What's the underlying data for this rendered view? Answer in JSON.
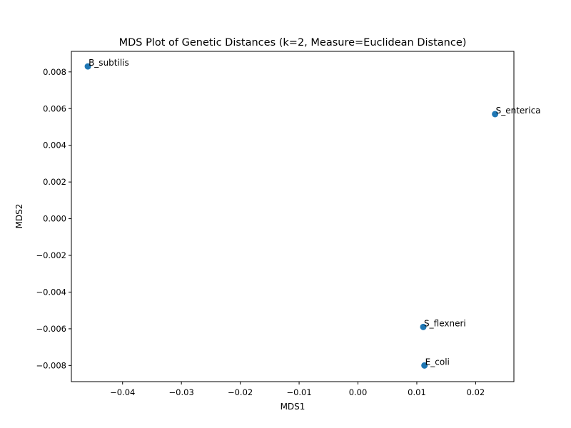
{
  "chart_data": {
    "type": "scatter",
    "title": "MDS Plot of Genetic Distances (k=2, Measure=Euclidean Distance)",
    "xlabel": "MDS1",
    "ylabel": "MDS2",
    "xlim": [
      -0.0487,
      0.0265
    ],
    "ylim": [
      -0.00888,
      0.00912
    ],
    "xticks": [
      -0.04,
      -0.03,
      -0.02,
      -0.01,
      0.0,
      0.01,
      0.02
    ],
    "xtick_labels": [
      "−0.04",
      "−0.03",
      "−0.02",
      "−0.01",
      "0.00",
      "0.01",
      "0.02"
    ],
    "yticks": [
      -0.008,
      -0.006,
      -0.004,
      -0.002,
      0.0,
      0.002,
      0.004,
      0.006,
      0.008
    ],
    "ytick_labels": [
      "−0.008",
      "−0.006",
      "−0.004",
      "−0.002",
      "0.000",
      "0.002",
      "0.004",
      "0.006",
      "0.008"
    ],
    "grid": false,
    "marker_color": "#1f77b4",
    "points": [
      {
        "label": "B_subtilis",
        "x": -0.0459,
        "y": 0.0083
      },
      {
        "label": "S_enterica",
        "x": 0.0233,
        "y": 0.0057
      },
      {
        "label": "S_flexneri",
        "x": 0.0111,
        "y": -0.0059
      },
      {
        "label": "E_coli",
        "x": 0.0113,
        "y": -0.008
      }
    ]
  }
}
